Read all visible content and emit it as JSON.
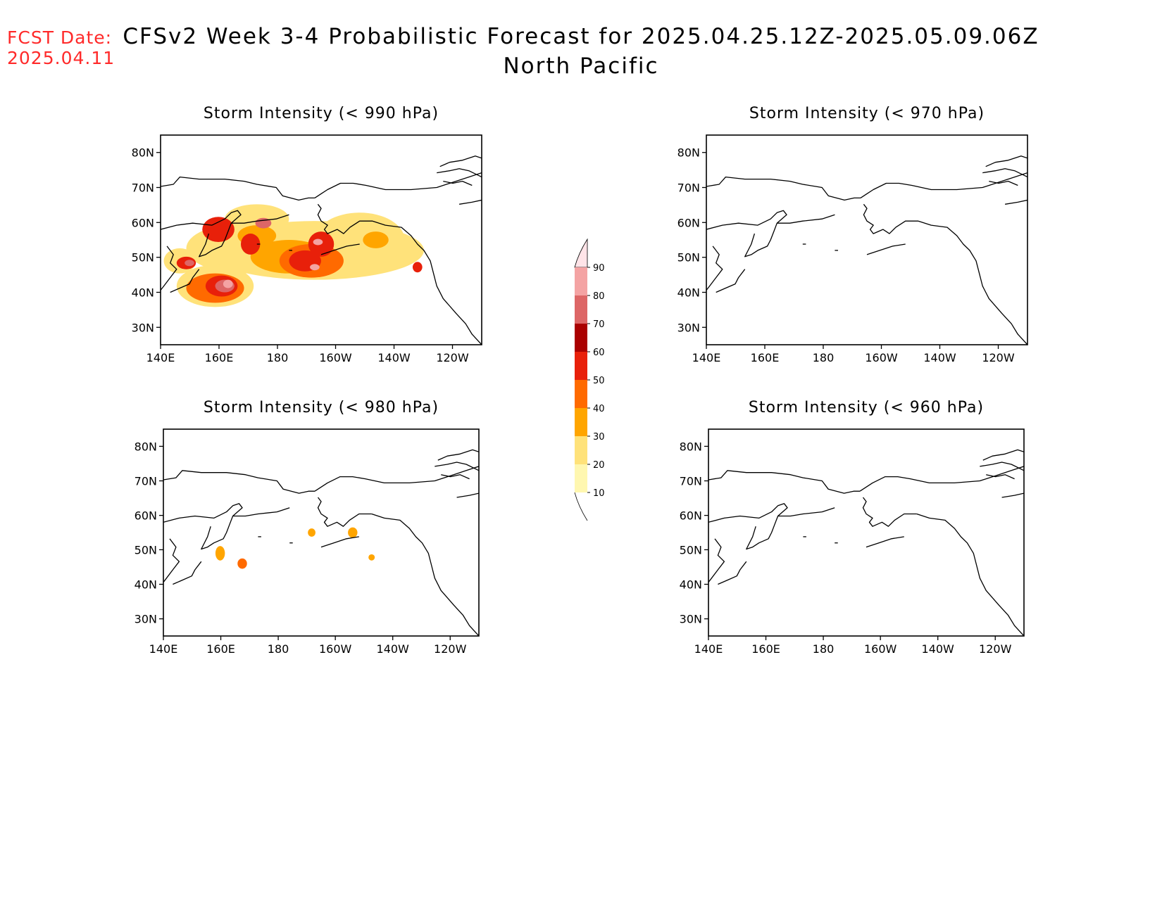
{
  "header": {
    "fcst_label": "FCST Date:",
    "fcst_date": "2025.04.11",
    "fcst_color": "#ff2a2a",
    "title_line1": "CFSv2 Week 3-4 Probabilistic Forecast for 2025.04.25.12Z-2025.05.09.06Z",
    "title_line2": "North Pacific"
  },
  "axes": {
    "lon_ticks": [
      "140E",
      "160E",
      "180",
      "160W",
      "140W",
      "120W"
    ],
    "lat_ticks": [
      "80N",
      "70N",
      "60N",
      "50N",
      "40N",
      "30N"
    ],
    "lon_range": [
      "140E",
      "110W"
    ],
    "lat_range": [
      "25N",
      "85N"
    ]
  },
  "panels": [
    {
      "id": "lt990",
      "title": "Storm Intensity (< 990 hPa)",
      "activity": "high"
    },
    {
      "id": "lt970",
      "title": "Storm Intensity (< 970 hPa)",
      "activity": "none"
    },
    {
      "id": "lt980",
      "title": "Storm Intensity (< 980 hPa)",
      "activity": "low"
    },
    {
      "id": "lt960",
      "title": "Storm Intensity (< 960 hPa)",
      "activity": "none"
    }
  ],
  "colorbar": {
    "levels": [
      "10",
      "20",
      "30",
      "40",
      "50",
      "60",
      "70",
      "80",
      "90"
    ],
    "colors": [
      "#fff7b0",
      "#ffe27a",
      "#ffa500",
      "#ff6a00",
      "#e8200a",
      "#aa0000",
      "#dd6666",
      "#f4a3a3",
      "#ffe4e8"
    ]
  }
}
